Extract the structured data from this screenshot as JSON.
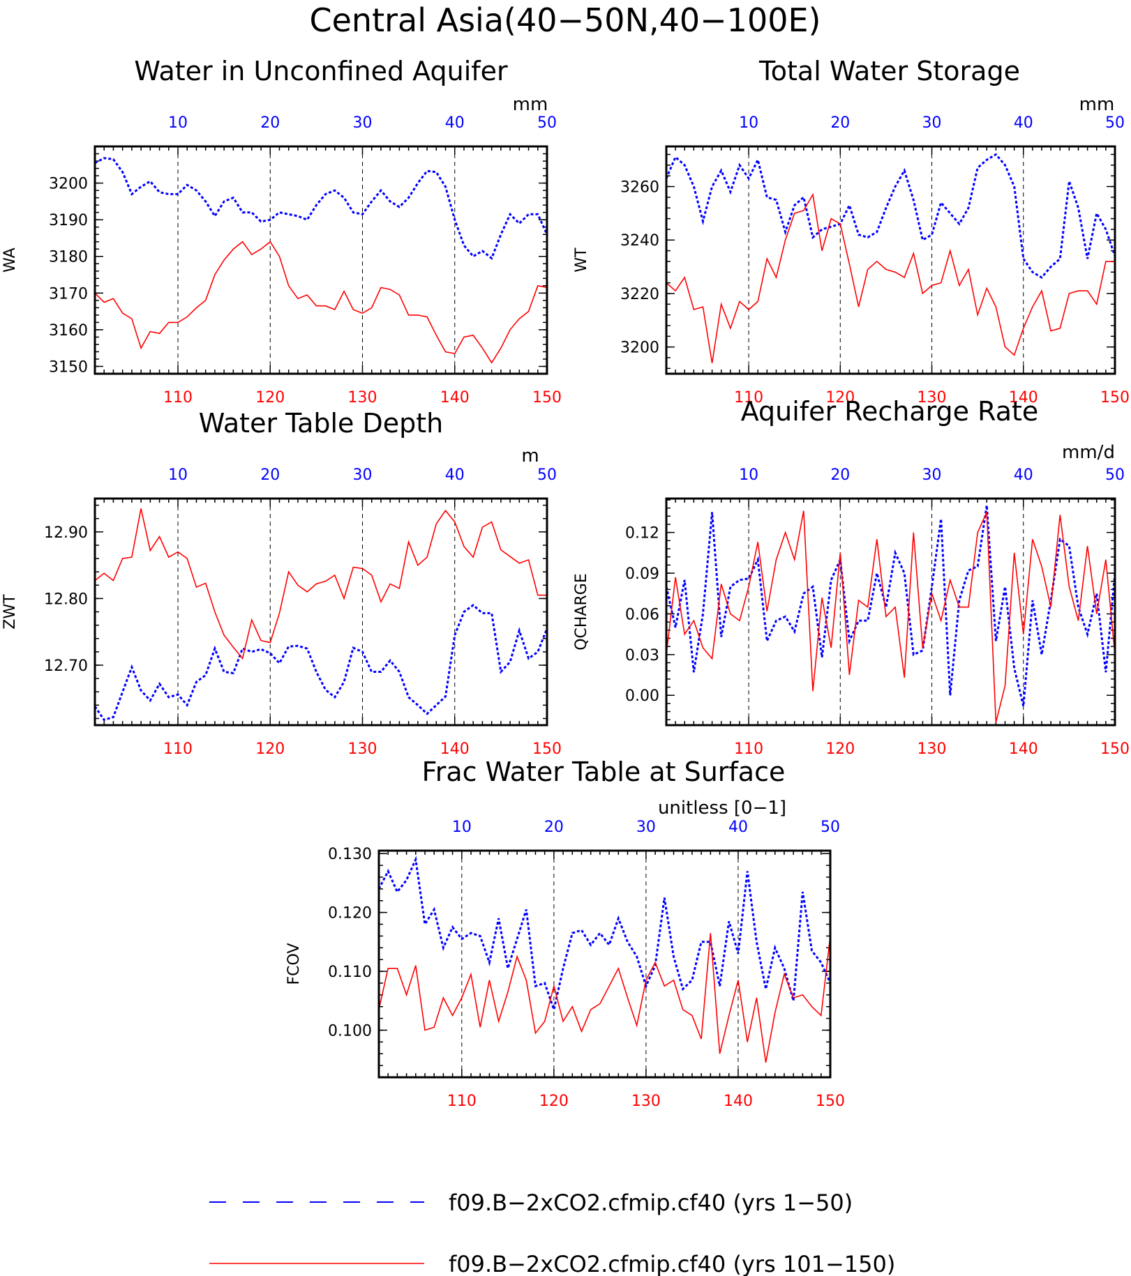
{
  "title": "Central Asia(40−50N,40−100E)",
  "legend": [
    {
      "label": "f09.B−2xCO2.cfmip.cf40 (yrs 1−50)",
      "color": "#0000ff",
      "style": "dashed"
    },
    {
      "label": "f09.B−2xCO2.cfmip.cf40 (yrs 101−150)",
      "color": "#ff0000",
      "style": "solid"
    }
  ],
  "chart_data": [
    {
      "type": "line",
      "title": "Water in Unconfined Aquifer",
      "ylabel": "WA",
      "units": "mm",
      "ylim": [
        3148,
        3210
      ],
      "yticks": [
        3150,
        3160,
        3170,
        3180,
        3190,
        3200
      ],
      "ytick_labels": [
        "3150",
        "3160",
        "3170",
        "3180",
        "3190",
        "3200"
      ],
      "top_axis": {
        "range": [
          1,
          50
        ],
        "ticks": [
          10,
          20,
          30,
          40,
          50
        ],
        "color": "#0000ff"
      },
      "bottom_axis": {
        "range": [
          101,
          150
        ],
        "ticks": [
          110,
          120,
          130,
          140,
          150
        ],
        "color": "#ff0000"
      },
      "series": [
        {
          "color": "#0000ff",
          "style": "dashed",
          "values": [
            3205.5,
            3206.8,
            3206.5,
            3203,
            3197,
            3199,
            3200.5,
            3197.5,
            3197,
            3197,
            3199.5,
            3198,
            3195,
            3191,
            3195,
            3196,
            3192,
            3192,
            3189.5,
            3190,
            3192,
            3191.5,
            3191,
            3190,
            3194,
            3197,
            3198,
            3196,
            3192,
            3191.5,
            3195,
            3198,
            3195,
            3193.5,
            3196,
            3200,
            3203.3,
            3203,
            3199,
            3190,
            3183,
            3180,
            3181.5,
            3179.5,
            3186,
            3191.5,
            3189,
            3191.5,
            3191.5,
            3186
          ]
        },
        {
          "color": "#ff0000",
          "style": "solid",
          "values": [
            3170,
            3167.5,
            3168.5,
            3164.5,
            3163,
            3155,
            3159.5,
            3159,
            3162,
            3162,
            3163.5,
            3166,
            3168,
            3175,
            3179,
            3182,
            3184,
            3180.5,
            3182,
            3184,
            3180,
            3172,
            3168.5,
            3169.5,
            3166.5,
            3166.5,
            3165.5,
            3170.5,
            3165.5,
            3164.5,
            3166,
            3171.5,
            3171,
            3169.5,
            3164,
            3164,
            3163.5,
            3158.5,
            3154,
            3153.5,
            3158,
            3158.5,
            3155,
            3151,
            3155,
            3160,
            3163,
            3165,
            3172,
            3171.5
          ]
        }
      ]
    },
    {
      "type": "line",
      "title": "Total Water Storage",
      "ylabel": "WT",
      "units": "mm",
      "ylim": [
        3190,
        3275
      ],
      "yticks": [
        3200,
        3220,
        3240,
        3260
      ],
      "ytick_labels": [
        "3200",
        "3220",
        "3240",
        "3260"
      ],
      "top_axis": {
        "range": [
          1,
          50
        ],
        "ticks": [
          10,
          20,
          30,
          40,
          50
        ],
        "color": "#0000ff"
      },
      "bottom_axis": {
        "range": [
          101,
          150
        ],
        "ticks": [
          110,
          120,
          130,
          140,
          150
        ],
        "color": "#ff0000"
      },
      "series": [
        {
          "color": "#0000ff",
          "style": "dashed",
          "values": [
            3263,
            3271,
            3268,
            3260,
            3247,
            3260,
            3266,
            3258,
            3268,
            3263,
            3270,
            3256,
            3255,
            3243,
            3253,
            3256,
            3241,
            3244,
            3245,
            3246,
            3253,
            3242,
            3241,
            3243,
            3252,
            3260,
            3266,
            3255,
            3240,
            3242,
            3254,
            3250,
            3246,
            3252,
            3267,
            3270,
            3272,
            3268,
            3260,
            3233,
            3228,
            3226,
            3230,
            3233,
            3262,
            3252,
            3233,
            3250,
            3244,
            3234
          ]
        },
        {
          "color": "#ff0000",
          "style": "solid",
          "values": [
            3224,
            3221,
            3226,
            3214,
            3215,
            3194,
            3216,
            3207,
            3217,
            3214,
            3217,
            3233,
            3226,
            3240,
            3250,
            3251,
            3257,
            3236,
            3248,
            3246,
            3231,
            3215,
            3229,
            3232,
            3229,
            3228,
            3226,
            3235,
            3220,
            3223,
            3224,
            3236,
            3223,
            3229,
            3212,
            3222,
            3215,
            3200,
            3197,
            3207,
            3215,
            3221,
            3206,
            3207,
            3220,
            3221,
            3221,
            3216,
            3232,
            3232
          ]
        }
      ]
    },
    {
      "type": "line",
      "title": "Water Table Depth",
      "ylabel": "ZWT",
      "units": "m",
      "ylim": [
        12.61,
        12.95
      ],
      "yticks": [
        12.7,
        12.8,
        12.9
      ],
      "ytick_labels": [
        "12.70",
        "12.80",
        "12.90"
      ],
      "top_axis": {
        "range": [
          1,
          50
        ],
        "ticks": [
          10,
          20,
          30,
          40,
          50
        ],
        "color": "#0000ff"
      },
      "bottom_axis": {
        "range": [
          101,
          150
        ],
        "ticks": [
          110,
          120,
          130,
          140,
          150
        ],
        "color": "#ff0000"
      },
      "series": [
        {
          "color": "#0000ff",
          "style": "dashed",
          "values": [
            12.638,
            12.618,
            12.622,
            12.66,
            12.697,
            12.662,
            12.647,
            12.672,
            12.652,
            12.656,
            12.64,
            12.675,
            12.685,
            12.725,
            12.69,
            12.688,
            12.725,
            12.72,
            12.724,
            12.718,
            12.703,
            12.728,
            12.729,
            12.725,
            12.69,
            12.663,
            12.652,
            12.675,
            12.726,
            12.72,
            12.69,
            12.69,
            12.707,
            12.69,
            12.652,
            12.64,
            12.627,
            12.64,
            12.653,
            12.745,
            12.78,
            12.79,
            12.778,
            12.778,
            12.69,
            12.705,
            12.752,
            12.71,
            12.72,
            12.755
          ]
        },
        {
          "color": "#ff0000",
          "style": "solid",
          "values": [
            12.827,
            12.838,
            12.827,
            12.86,
            12.862,
            12.935,
            12.872,
            12.893,
            12.862,
            12.87,
            12.86,
            12.817,
            12.823,
            12.78,
            12.745,
            12.727,
            12.71,
            12.768,
            12.737,
            12.734,
            12.778,
            12.84,
            12.82,
            12.81,
            12.822,
            12.826,
            12.835,
            12.8,
            12.847,
            12.845,
            12.835,
            12.795,
            12.822,
            12.815,
            12.885,
            12.85,
            12.862,
            12.912,
            12.932,
            12.915,
            12.878,
            12.862,
            12.907,
            12.915,
            12.873,
            12.863,
            12.853,
            12.858,
            12.805,
            12.805
          ]
        }
      ]
    },
    {
      "type": "line",
      "title": "Aquifer Recharge Rate",
      "ylabel": "QCHARGE",
      "units": "mm/d",
      "ylim": [
        -0.022,
        0.145
      ],
      "yticks": [
        0.0,
        0.03,
        0.06,
        0.09,
        0.12
      ],
      "ytick_labels": [
        "0.00",
        "0.03",
        "0.06",
        "0.09",
        "0.12"
      ],
      "top_axis": {
        "range": [
          1,
          50
        ],
        "ticks": [
          10,
          20,
          30,
          40,
          50
        ],
        "color": "#0000ff"
      },
      "bottom_axis": {
        "range": [
          101,
          150
        ],
        "ticks": [
          110,
          120,
          130,
          140,
          150
        ],
        "color": "#ff0000"
      },
      "series": [
        {
          "color": "#0000ff",
          "style": "dashed",
          "values": [
            0.08,
            0.05,
            0.085,
            0.017,
            0.06,
            0.135,
            0.043,
            0.08,
            0.085,
            0.086,
            0.1,
            0.04,
            0.055,
            0.058,
            0.047,
            0.075,
            0.08,
            0.028,
            0.085,
            0.1,
            0.04,
            0.055,
            0.055,
            0.09,
            0.065,
            0.105,
            0.09,
            0.03,
            0.033,
            0.08,
            0.13,
            0.0,
            0.07,
            0.092,
            0.095,
            0.14,
            0.04,
            0.08,
            0.02,
            -0.008,
            0.07,
            0.03,
            0.07,
            0.115,
            0.11,
            0.065,
            0.045,
            0.075,
            0.017,
            0.09
          ]
        },
        {
          "color": "#ff0000",
          "style": "solid",
          "values": [
            0.03,
            0.087,
            0.045,
            0.055,
            0.035,
            0.027,
            0.082,
            0.06,
            0.055,
            0.08,
            0.113,
            0.062,
            0.1,
            0.12,
            0.1,
            0.136,
            0.003,
            0.072,
            0.035,
            0.105,
            0.015,
            0.07,
            0.065,
            0.115,
            0.058,
            0.065,
            0.013,
            0.12,
            0.035,
            0.075,
            0.055,
            0.085,
            0.065,
            0.065,
            0.12,
            0.135,
            -0.02,
            0.007,
            0.105,
            0.045,
            0.115,
            0.095,
            0.065,
            0.133,
            0.08,
            0.055,
            0.11,
            0.06,
            0.1,
            0.03
          ]
        }
      ]
    },
    {
      "type": "line",
      "title": "Frac Water Table at Surface",
      "ylabel": "FCOV",
      "units": "unitless [0−1]",
      "ylim": [
        0.092,
        0.1305
      ],
      "yticks": [
        0.1,
        0.11,
        0.12,
        0.13
      ],
      "ytick_labels": [
        "0.100",
        "0.110",
        "0.120",
        "0.130"
      ],
      "top_axis": {
        "range": [
          1,
          50
        ],
        "ticks": [
          10,
          20,
          30,
          40,
          50
        ],
        "color": "#0000ff"
      },
      "bottom_axis": {
        "range": [
          101,
          150
        ],
        "ticks": [
          110,
          120,
          130,
          140,
          150
        ],
        "color": "#ff0000"
      },
      "series": [
        {
          "color": "#0000ff",
          "style": "dashed",
          "values": [
            0.124,
            0.127,
            0.1235,
            0.1255,
            0.129,
            0.118,
            0.1205,
            0.114,
            0.1175,
            0.1155,
            0.1165,
            0.116,
            0.1115,
            0.119,
            0.1105,
            0.1155,
            0.1205,
            0.1075,
            0.108,
            0.1035,
            0.1105,
            0.1165,
            0.117,
            0.1145,
            0.1165,
            0.1145,
            0.119,
            0.115,
            0.1125,
            0.1075,
            0.111,
            0.1225,
            0.1125,
            0.107,
            0.1085,
            0.115,
            0.115,
            0.1075,
            0.1185,
            0.113,
            0.127,
            0.115,
            0.107,
            0.114,
            0.1105,
            0.105,
            0.1235,
            0.1135,
            0.1115,
            0.108
          ]
        },
        {
          "color": "#ff0000",
          "style": "solid",
          "values": [
            0.1035,
            0.1105,
            0.1105,
            0.106,
            0.111,
            0.1,
            0.1005,
            0.1055,
            0.1025,
            0.1055,
            0.1095,
            0.1005,
            0.1085,
            0.1015,
            0.1065,
            0.1125,
            0.1085,
            0.0995,
            0.1015,
            0.1075,
            0.1015,
            0.104,
            0.0998,
            0.1035,
            0.1045,
            0.1075,
            0.1105,
            0.1055,
            0.1008,
            0.1085,
            0.1115,
            0.1075,
            0.1085,
            0.1035,
            0.1025,
            0.0985,
            0.1165,
            0.096,
            0.1025,
            0.1085,
            0.098,
            0.1055,
            0.0945,
            0.103,
            0.1095,
            0.1055,
            0.106,
            0.104,
            0.1025,
            0.116
          ]
        }
      ]
    }
  ]
}
